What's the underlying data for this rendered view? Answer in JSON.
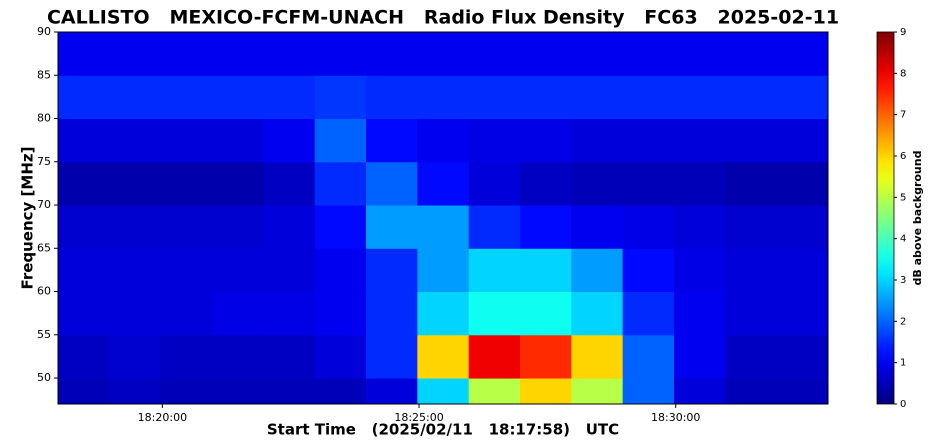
{
  "chart_data": {
    "type": "heatmap",
    "title": "CALLISTO   MEXICO-FCFM-UNACH   Radio Flux Density   FC63   2025-02-11",
    "xlabel": "Start Time   (2025/02/11   18:17:58)   UTC",
    "ylabel": "Frequency [MHz]",
    "colorbar_label": "dB above background",
    "colormap": "jet",
    "xlim": [
      0,
      900
    ],
    "xticks": [
      {
        "value": 122,
        "label": "18:20:00"
      },
      {
        "value": 422,
        "label": "18:25:00"
      },
      {
        "value": 722,
        "label": "18:30:00"
      }
    ],
    "ylim": [
      47,
      90
    ],
    "yticks": [
      50,
      55,
      60,
      65,
      70,
      75,
      80,
      85,
      90
    ],
    "clim": [
      0,
      9
    ],
    "cticks": [
      0,
      1,
      2,
      3,
      4,
      5,
      6,
      7,
      8,
      9
    ],
    "x_bins": [
      0,
      60,
      120,
      180,
      240,
      300,
      360,
      420,
      480,
      540,
      600,
      660,
      720,
      780,
      840,
      900
    ],
    "y_bins": [
      47,
      50,
      55,
      60,
      65,
      70,
      75,
      80,
      85,
      90
    ],
    "z": [
      [
        0.5,
        0.6,
        0.5,
        0.5,
        0.5,
        0.5,
        0.8,
        3,
        5,
        6,
        5,
        2,
        0.8,
        0.5,
        0.5
      ],
      [
        0.6,
        0.7,
        0.6,
        0.6,
        0.6,
        0.8,
        1.5,
        6,
        8,
        7.5,
        6,
        2,
        1,
        0.6,
        0.6
      ],
      [
        0.8,
        0.8,
        0.8,
        0.9,
        0.9,
        1,
        1.5,
        3,
        3.5,
        3.5,
        3,
        1.5,
        1,
        0.8,
        0.8
      ],
      [
        0.8,
        0.8,
        0.8,
        0.8,
        0.8,
        1,
        1.5,
        2.5,
        3,
        3,
        2.5,
        1.2,
        0.9,
        0.8,
        0.8
      ],
      [
        0.7,
        0.7,
        0.7,
        0.7,
        0.8,
        1.2,
        2.5,
        2.5,
        1.5,
        1.2,
        1,
        0.9,
        0.8,
        0.7,
        0.7
      ],
      [
        0.4,
        0.4,
        0.4,
        0.4,
        0.6,
        1.5,
        2,
        1.2,
        0.8,
        0.6,
        0.5,
        0.5,
        0.5,
        0.4,
        0.4
      ],
      [
        0.8,
        0.8,
        0.8,
        0.8,
        1,
        2,
        1.2,
        1,
        0.9,
        0.9,
        0.8,
        0.8,
        0.8,
        0.8,
        0.8
      ],
      [
        1.5,
        1.5,
        1.5,
        1.5,
        1.5,
        1.6,
        1.5,
        1.5,
        1.5,
        1.5,
        1.5,
        1.5,
        1.5,
        1.5,
        1.5
      ],
      [
        1,
        1,
        1,
        1,
        1,
        1,
        1,
        1,
        1,
        1,
        1,
        1,
        1,
        1,
        1
      ]
    ]
  }
}
